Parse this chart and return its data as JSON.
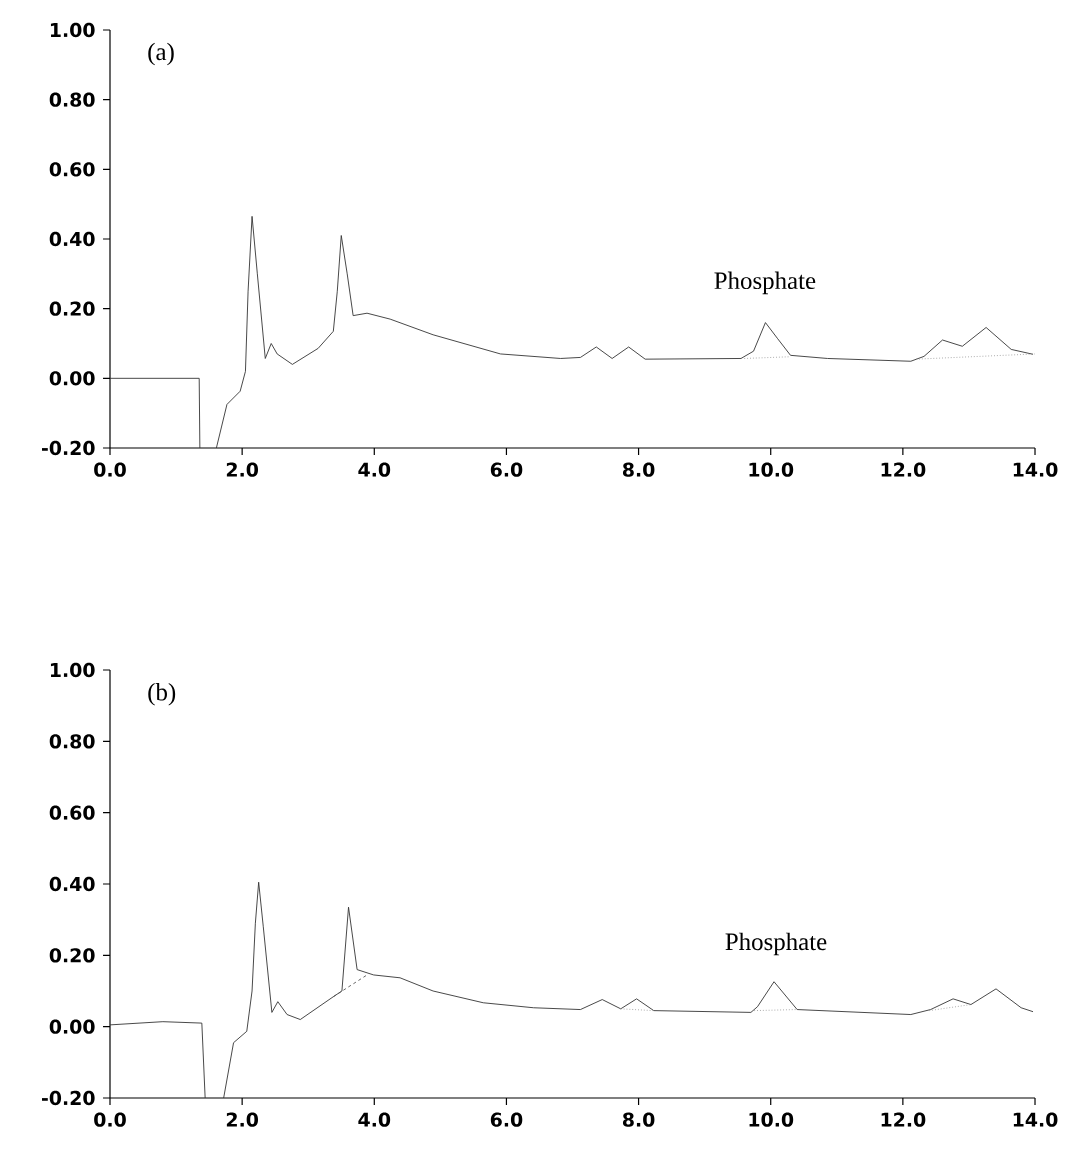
{
  "chart_data": [
    {
      "type": "line",
      "xlim": [
        0,
        14
      ],
      "ylim": [
        -0.2,
        1.0
      ],
      "xticks": [
        {
          "value": 0,
          "label": "0.0"
        },
        {
          "value": 2,
          "label": "2.0"
        },
        {
          "value": 4,
          "label": "4.0"
        },
        {
          "value": 6,
          "label": "6.0"
        },
        {
          "value": 8,
          "label": "8.0"
        },
        {
          "value": 10,
          "label": "10.0"
        },
        {
          "value": 12,
          "label": "12.0"
        },
        {
          "value": 14,
          "label": "14.0"
        }
      ],
      "yticks": [
        {
          "value": -0.2,
          "label": "-0.20"
        },
        {
          "value": 0,
          "label": "0.00"
        },
        {
          "value": 0.2,
          "label": "0.20"
        },
        {
          "value": 0.4,
          "label": "0.40"
        },
        {
          "value": 0.6,
          "label": "0.60"
        },
        {
          "value": 0.8,
          "label": "0.80"
        },
        {
          "value": 1.0,
          "label": "1.00"
        }
      ],
      "annotations": [
        "(a)",
        "Phosphate"
      ],
      "series": [
        {
          "color": "#333333",
          "line_style": "solid",
          "x": [
            0,
            0.8,
            1.35,
            1.36,
            1.48,
            1.61,
            1.77,
            1.97,
            2.05,
            2.09,
            2.15,
            2.23,
            2.35,
            2.44,
            2.53,
            2.76,
            3.15,
            3.38,
            3.44,
            3.5,
            3.59,
            3.68,
            3.89,
            4.24,
            4.89,
            5.91,
            6.82,
            7.12,
            7.36,
            7.6,
            7.85,
            8.1,
            9.55,
            9.74,
            9.92,
            10.1,
            10.3,
            10.86,
            12.12,
            12.32,
            12.6,
            12.9,
            13.26,
            13.64,
            13.97
          ],
          "values": [
            0.0,
            0.0,
            0.0,
            -0.2,
            null,
            -0.2,
            -0.075,
            -0.037,
            0.02,
            0.25,
            0.465,
            0.3,
            0.057,
            0.1,
            0.07,
            0.04,
            0.086,
            0.135,
            0.25,
            0.41,
            0.3,
            0.18,
            0.187,
            0.17,
            0.125,
            0.07,
            0.057,
            0.06,
            0.09,
            0.057,
            0.09,
            0.055,
            0.057,
            0.078,
            0.16,
            0.115,
            0.066,
            0.057,
            0.049,
            0.063,
            0.11,
            0.092,
            0.146,
            0.083,
            0.069
          ]
        },
        {
          "color": "#999999",
          "line_style": "dotted",
          "x": [
            9.6,
            10.3
          ],
          "values": [
            0.057,
            0.062
          ]
        },
        {
          "color": "#999999",
          "line_style": "dotted",
          "x": [
            12.2,
            14.0
          ],
          "values": [
            0.055,
            0.07
          ]
        }
      ]
    },
    {
      "type": "line",
      "xlim": [
        0,
        14
      ],
      "ylim": [
        -0.2,
        1.0
      ],
      "xticks": [
        {
          "value": 0,
          "label": "0.0"
        },
        {
          "value": 2,
          "label": "2.0"
        },
        {
          "value": 4,
          "label": "4.0"
        },
        {
          "value": 6,
          "label": "6.0"
        },
        {
          "value": 8,
          "label": "8.0"
        },
        {
          "value": 10,
          "label": "10.0"
        },
        {
          "value": 12,
          "label": "12.0"
        },
        {
          "value": 14,
          "label": "14.0"
        }
      ],
      "yticks": [
        {
          "value": -0.2,
          "label": "-0.20"
        },
        {
          "value": 0,
          "label": "0.00"
        },
        {
          "value": 0.2,
          "label": "0.20"
        },
        {
          "value": 0.4,
          "label": "0.40"
        },
        {
          "value": 0.6,
          "label": "0.60"
        },
        {
          "value": 0.8,
          "label": "0.80"
        },
        {
          "value": 1.0,
          "label": "1.00"
        }
      ],
      "annotations": [
        "(b)",
        "Phosphate"
      ],
      "series": [
        {
          "color": "#333333",
          "line_style": "solid",
          "x": [
            0,
            0.8,
            1.39,
            1.44,
            1.58,
            1.72,
            1.87,
            2.07,
            2.15,
            2.2,
            2.25,
            2.32,
            2.45,
            2.54,
            2.68,
            2.88,
            3.38,
            3.51,
            3.61,
            3.74,
            3.99,
            4.39,
            4.89,
            5.65,
            6.41,
            7.12,
            7.45,
            7.73,
            7.97,
            8.23,
            9.7,
            9.8,
            10.05,
            10.4,
            12.12,
            12.42,
            12.76,
            13.03,
            13.41,
            13.79,
            13.97
          ],
          "values": [
            0.005,
            0.014,
            0.01,
            -0.2,
            null,
            -0.2,
            -0.045,
            -0.013,
            0.1,
            0.29,
            0.405,
            0.28,
            0.04,
            0.07,
            0.034,
            0.02,
            0.084,
            0.1,
            0.335,
            0.16,
            0.145,
            0.137,
            0.1,
            0.067,
            0.053,
            0.048,
            0.076,
            0.05,
            0.078,
            0.045,
            0.04,
            0.056,
            0.126,
            0.048,
            0.034,
            0.048,
            0.078,
            0.062,
            0.106,
            0.053,
            0.042
          ]
        },
        {
          "color": "#555555",
          "line_style": "dashed",
          "x": [
            3.38,
            3.89
          ],
          "values": [
            0.084,
            0.145
          ]
        },
        {
          "color": "#999999",
          "line_style": "dotted",
          "x": [
            7.73,
            8.23
          ],
          "values": [
            0.05,
            0.045
          ]
        },
        {
          "color": "#999999",
          "line_style": "dotted",
          "x": [
            9.75,
            10.4
          ],
          "values": [
            0.045,
            0.048
          ]
        },
        {
          "color": "#999999",
          "line_style": "dotted",
          "x": [
            12.4,
            13.03
          ],
          "values": [
            0.045,
            0.062
          ]
        }
      ]
    }
  ]
}
